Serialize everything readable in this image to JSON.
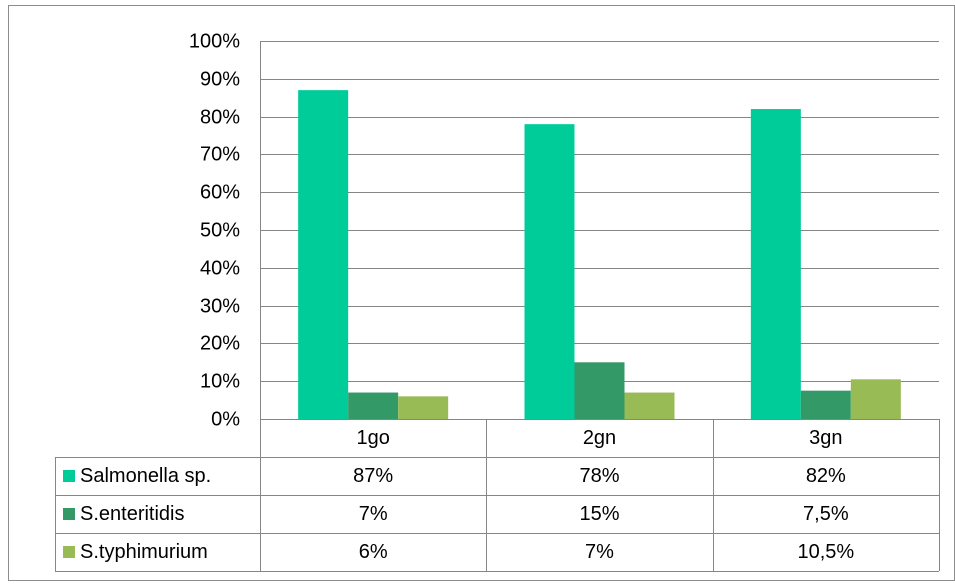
{
  "chart_data": {
    "type": "bar",
    "title": "",
    "xlabel": "",
    "ylabel": "",
    "ylim": [
      0,
      100
    ],
    "ytick_step": 10,
    "grid": true,
    "legend": "data-table-left",
    "categories": [
      "1go",
      "2gn",
      "3gn"
    ],
    "series": [
      {
        "name": "Salmonella sp.",
        "color": "#00CC99",
        "values": [
          87,
          78,
          82
        ],
        "labels": [
          "87%",
          "78%",
          "82%"
        ]
      },
      {
        "name": "S.enteritidis",
        "color": "#339966",
        "values": [
          7,
          15,
          7.5
        ],
        "labels": [
          "7%",
          "15%",
          "7,5%"
        ]
      },
      {
        "name": "S.typhimurium",
        "color": "#99BB55",
        "values": [
          6,
          7,
          10.5
        ],
        "labels": [
          "6%",
          "7%",
          "10,5%"
        ]
      }
    ]
  }
}
